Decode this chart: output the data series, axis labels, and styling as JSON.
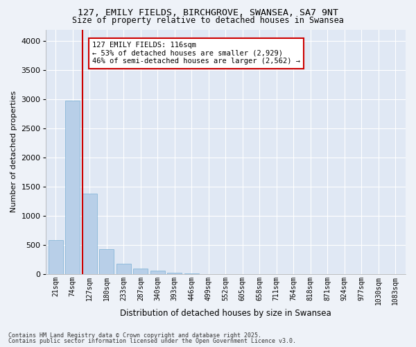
{
  "title_line1": "127, EMILY FIELDS, BIRCHGROVE, SWANSEA, SA7 9NT",
  "title_line2": "Size of property relative to detached houses in Swansea",
  "xlabel": "Distribution of detached houses by size in Swansea",
  "ylabel": "Number of detached properties",
  "categories": [
    "21sqm",
    "74sqm",
    "127sqm",
    "180sqm",
    "233sqm",
    "287sqm",
    "340sqm",
    "393sqm",
    "446sqm",
    "499sqm",
    "552sqm",
    "605sqm",
    "658sqm",
    "711sqm",
    "764sqm",
    "818sqm",
    "871sqm",
    "924sqm",
    "977sqm",
    "1030sqm",
    "1083sqm"
  ],
  "values": [
    580,
    2980,
    1380,
    430,
    175,
    100,
    55,
    30,
    15,
    5,
    2,
    1,
    1,
    0,
    0,
    0,
    0,
    0,
    0,
    0,
    0
  ],
  "bar_color": "#b8cfe8",
  "bar_edge_color": "#7aafd4",
  "marker_color": "#cc0000",
  "annotation_title": "127 EMILY FIELDS: 116sqm",
  "annotation_line2": "← 53% of detached houses are smaller (2,929)",
  "annotation_line3": "46% of semi-detached houses are larger (2,562) →",
  "annotation_box_color": "#cc0000",
  "ylim": [
    0,
    4200
  ],
  "yticks": [
    0,
    500,
    1000,
    1500,
    2000,
    2500,
    3000,
    3500,
    4000
  ],
  "footer_line1": "Contains HM Land Registry data © Crown copyright and database right 2025.",
  "footer_line2": "Contains public sector information licensed under the Open Government Licence v3.0.",
  "bg_color": "#eef2f8",
  "plot_bg_color": "#e0e8f4"
}
